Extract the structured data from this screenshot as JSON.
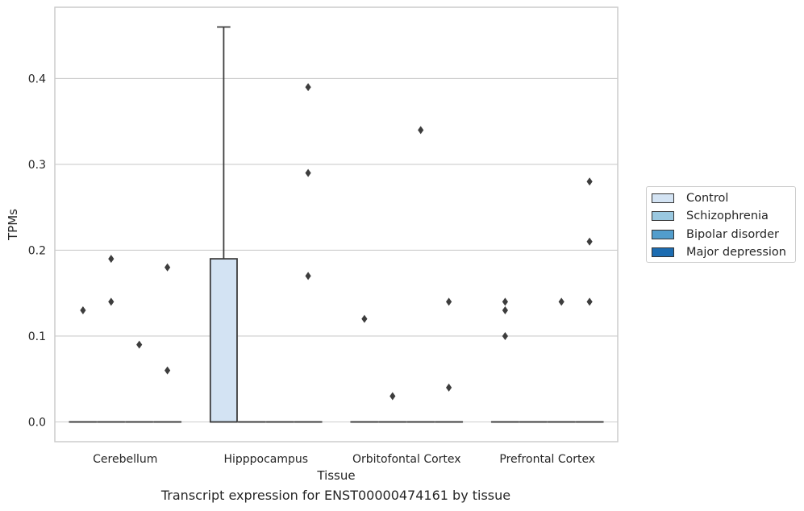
{
  "chart_data": {
    "type": "box",
    "xlabel": "Tissue",
    "ylabel": "TPMs",
    "caption": "Transcript expression for ENST00000474161 by tissue",
    "ylim": [
      -0.023,
      0.483
    ],
    "yticks": [
      0.0,
      0.1,
      0.2,
      0.3,
      0.4
    ],
    "ytick_labels": [
      "0.0",
      "0.1",
      "0.2",
      "0.3",
      "0.4"
    ],
    "grid": true,
    "legend_position": "right",
    "categories": [
      "Cerebellum",
      "Hipppocampus",
      "Orbitofontal Cortex",
      "Prefrontal Cortex"
    ],
    "series": [
      {
        "name": "Control",
        "color": "#d3e3f3",
        "boxes": [
          {
            "q1": 0.0,
            "median": 0.0,
            "q3": 0.0,
            "whisker_low": 0.0,
            "whisker_high": 0.0,
            "outliers": [
              0.13
            ]
          },
          {
            "q1": 0.0,
            "median": 0.0,
            "q3": 0.19,
            "whisker_low": 0.0,
            "whisker_high": 0.46,
            "outliers": []
          },
          {
            "q1": 0.0,
            "median": 0.0,
            "q3": 0.0,
            "whisker_low": 0.0,
            "whisker_high": 0.0,
            "outliers": [
              0.12
            ]
          },
          {
            "q1": 0.0,
            "median": 0.0,
            "q3": 0.0,
            "whisker_low": 0.0,
            "whisker_high": 0.0,
            "outliers": [
              0.14,
              0.13,
              0.1
            ]
          }
        ]
      },
      {
        "name": "Schizophrenia",
        "color": "#9ac8e0",
        "boxes": [
          {
            "q1": 0.0,
            "median": 0.0,
            "q3": 0.0,
            "whisker_low": 0.0,
            "whisker_high": 0.0,
            "outliers": [
              0.19,
              0.14
            ]
          },
          {
            "q1": 0.0,
            "median": 0.0,
            "q3": 0.0,
            "whisker_low": 0.0,
            "whisker_high": 0.0,
            "outliers": []
          },
          {
            "q1": 0.0,
            "median": 0.0,
            "q3": 0.0,
            "whisker_low": 0.0,
            "whisker_high": 0.0,
            "outliers": [
              0.03
            ]
          },
          {
            "q1": 0.0,
            "median": 0.0,
            "q3": 0.0,
            "whisker_low": 0.0,
            "whisker_high": 0.0,
            "outliers": []
          }
        ]
      },
      {
        "name": "Bipolar disorder",
        "color": "#529dcc",
        "boxes": [
          {
            "q1": 0.0,
            "median": 0.0,
            "q3": 0.0,
            "whisker_low": 0.0,
            "whisker_high": 0.0,
            "outliers": [
              0.09
            ]
          },
          {
            "q1": 0.0,
            "median": 0.0,
            "q3": 0.0,
            "whisker_low": 0.0,
            "whisker_high": 0.0,
            "outliers": []
          },
          {
            "q1": 0.0,
            "median": 0.0,
            "q3": 0.0,
            "whisker_low": 0.0,
            "whisker_high": 0.0,
            "outliers": [
              0.34
            ]
          },
          {
            "q1": 0.0,
            "median": 0.0,
            "q3": 0.0,
            "whisker_low": 0.0,
            "whisker_high": 0.0,
            "outliers": [
              0.14
            ]
          }
        ]
      },
      {
        "name": "Major depression",
        "color": "#1c6cb1",
        "boxes": [
          {
            "q1": 0.0,
            "median": 0.0,
            "q3": 0.0,
            "whisker_low": 0.0,
            "whisker_high": 0.0,
            "outliers": [
              0.18,
              0.06
            ]
          },
          {
            "q1": 0.0,
            "median": 0.0,
            "q3": 0.0,
            "whisker_low": 0.0,
            "whisker_high": 0.0,
            "outliers": [
              0.39,
              0.29,
              0.17
            ]
          },
          {
            "q1": 0.0,
            "median": 0.0,
            "q3": 0.0,
            "whisker_low": 0.0,
            "whisker_high": 0.0,
            "outliers": [
              0.14,
              0.04
            ]
          },
          {
            "q1": 0.0,
            "median": 0.0,
            "q3": 0.0,
            "whisker_low": 0.0,
            "whisker_high": 0.0,
            "outliers": [
              0.28,
              0.21,
              0.14
            ]
          }
        ]
      }
    ]
  }
}
